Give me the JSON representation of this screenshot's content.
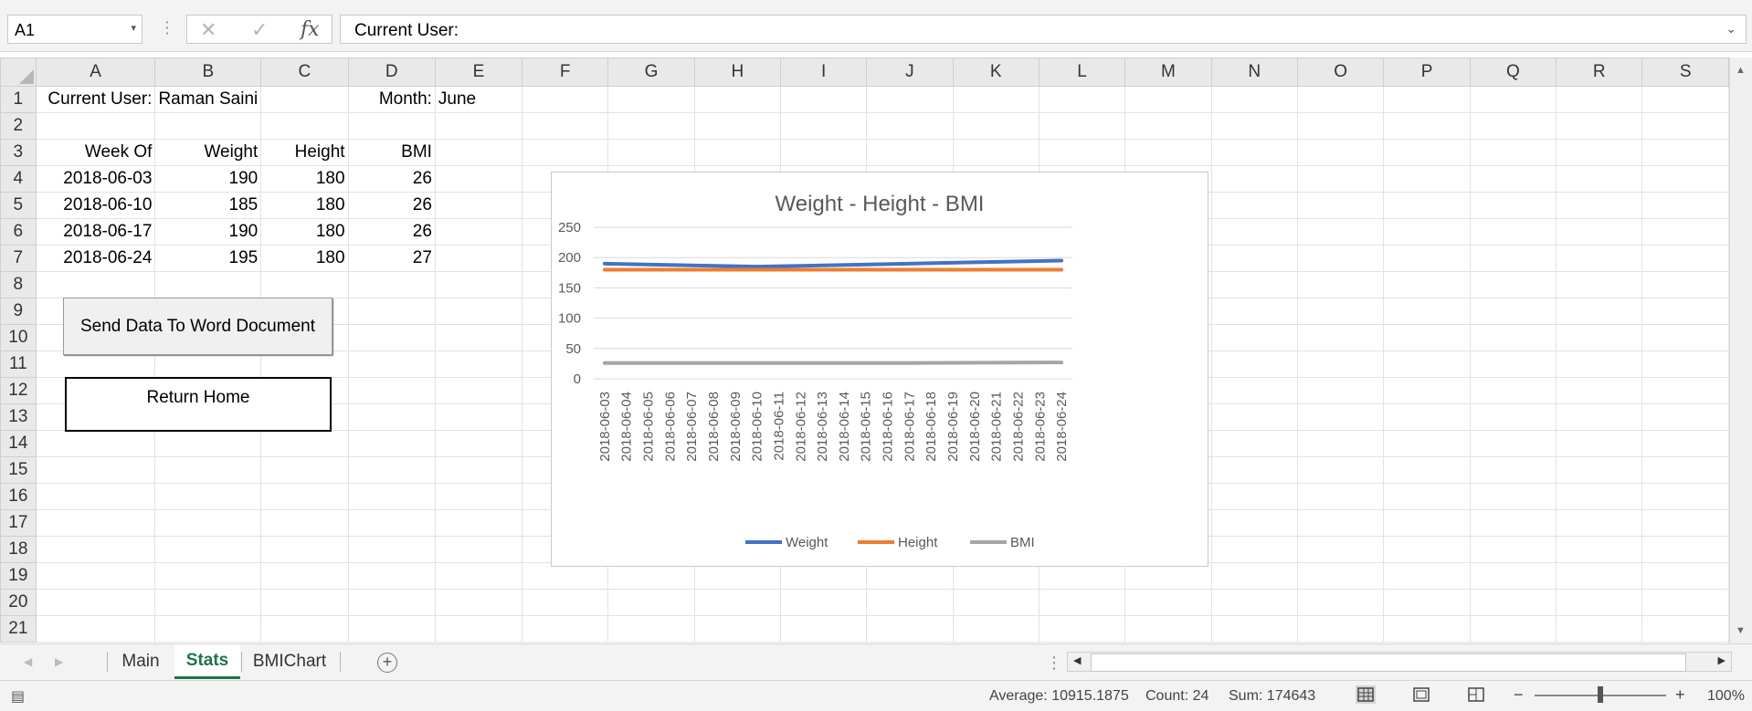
{
  "formula_bar": {
    "name_box": "A1",
    "cancel_icon": "✕",
    "enter_icon": "✓",
    "fx_label": "fx",
    "formula": "Current User:"
  },
  "columns": [
    "A",
    "B",
    "C",
    "D",
    "E",
    "F",
    "G",
    "H",
    "I",
    "J",
    "K",
    "L",
    "M",
    "N",
    "O",
    "P",
    "Q",
    "R",
    "S"
  ],
  "rows": [
    "1",
    "2",
    "3",
    "4",
    "5",
    "6",
    "7",
    "8",
    "9",
    "10",
    "11",
    "12",
    "13",
    "14",
    "15",
    "16",
    "17",
    "18",
    "19",
    "20",
    "21"
  ],
  "cells": {
    "A1": "Current User:",
    "B1": "Raman Saini",
    "D1": "Month:",
    "E1": "June",
    "A3": "Week Of",
    "B3": "Weight",
    "C3": "Height",
    "D3": "BMI",
    "A4": "2018-06-03",
    "B4": "190",
    "C4": "180",
    "D4": "26",
    "A5": "2018-06-10",
    "B5": "185",
    "C5": "180",
    "D5": "26",
    "A6": "2018-06-17",
    "B6": "190",
    "C6": "180",
    "D6": "26",
    "A7": "2018-06-24",
    "B7": "195",
    "C7": "180",
    "D7": "27"
  },
  "buttons": {
    "send": "Send Data To Word Document",
    "home": "Return Home"
  },
  "chart_data": {
    "type": "line",
    "title": "Weight - Height - BMI",
    "x": [
      "2018-06-03",
      "2018-06-04",
      "2018-06-05",
      "2018-06-06",
      "2018-06-07",
      "2018-06-08",
      "2018-06-09",
      "2018-06-10",
      "2018-06-11",
      "2018-06-12",
      "2018-06-13",
      "2018-06-14",
      "2018-06-15",
      "2018-06-16",
      "2018-06-17",
      "2018-06-18",
      "2018-06-19",
      "2018-06-20",
      "2018-06-21",
      "2018-06-22",
      "2018-06-23",
      "2018-06-24"
    ],
    "series": [
      {
        "name": "Weight",
        "color": "#4472C4",
        "points": [
          [
            "2018-06-03",
            190
          ],
          [
            "2018-06-10",
            185
          ],
          [
            "2018-06-17",
            190
          ],
          [
            "2018-06-24",
            195
          ]
        ]
      },
      {
        "name": "Height",
        "color": "#ED7D31",
        "points": [
          [
            "2018-06-03",
            180
          ],
          [
            "2018-06-10",
            180
          ],
          [
            "2018-06-17",
            180
          ],
          [
            "2018-06-24",
            180
          ]
        ]
      },
      {
        "name": "BMI",
        "color": "#A5A5A5",
        "points": [
          [
            "2018-06-03",
            26
          ],
          [
            "2018-06-10",
            26
          ],
          [
            "2018-06-17",
            26
          ],
          [
            "2018-06-24",
            27
          ]
        ]
      }
    ],
    "yticks": [
      "250",
      "200",
      "150",
      "100",
      "50",
      "0"
    ],
    "ylim": [
      0,
      250
    ],
    "grid": true,
    "legend": "bottom"
  },
  "tabs": [
    {
      "label": "Main",
      "active": false
    },
    {
      "label": "Stats",
      "active": true
    },
    {
      "label": "BMIChart",
      "active": false
    }
  ],
  "status": {
    "average": "Average: 10915.1875",
    "count": "Count: 24",
    "sum": "Sum: 174643",
    "zoom": "100%"
  }
}
